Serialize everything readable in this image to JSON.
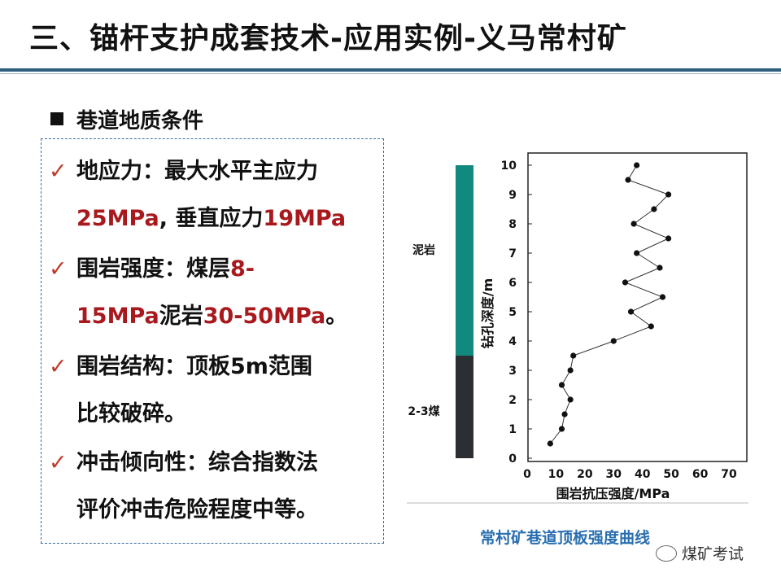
{
  "title": "三、锚杆支护成套技术-应用实例-义马常村矿",
  "section": "巷道地质条件",
  "items": [
    {
      "l1": [
        {
          "t": "地应力：最大水平主应力",
          "r": false
        }
      ],
      "l2": [
        {
          "t": "25MPa",
          "r": true
        },
        {
          "t": ", 垂直应力",
          "r": false
        },
        {
          "t": "19MPa",
          "r": true
        }
      ]
    },
    {
      "l1": [
        {
          "t": "围岩强度：煤层",
          "r": false
        },
        {
          "t": "8-",
          "r": true
        }
      ],
      "l2": [
        {
          "t": "15MPa",
          "r": true
        },
        {
          "t": "泥岩",
          "r": false
        },
        {
          "t": "30-50MPa",
          "r": true
        },
        {
          "t": "。",
          "r": false
        }
      ]
    },
    {
      "l1": [
        {
          "t": "围岩结构：顶板5m范围",
          "r": false
        }
      ],
      "l2": [
        {
          "t": "比较破碎。",
          "r": false
        }
      ]
    },
    {
      "l1": [
        {
          "t": "冲击倾向性：综合指数法",
          "r": false
        }
      ],
      "l2": [
        {
          "t": "评价冲击危险程度中等。",
          "r": false
        }
      ]
    }
  ],
  "check_mark": "✓",
  "caption": "常村矿巷道顶板强度曲线",
  "watermark": "煤矿考试",
  "chart_data": {
    "type": "line",
    "xlabel": "围岩抗压强度/MPa",
    "ylabel": "钻孔深度/m",
    "xlim": [
      0,
      70
    ],
    "ylim": [
      0,
      10
    ],
    "xticks": [
      0,
      10,
      20,
      30,
      40,
      50,
      60,
      70
    ],
    "yticks": [
      0,
      1,
      2,
      3,
      4,
      5,
      6,
      7,
      8,
      9,
      10
    ],
    "points": [
      [
        8,
        0.5
      ],
      [
        12,
        1.0
      ],
      [
        13,
        1.5
      ],
      [
        15,
        2.0
      ],
      [
        12,
        2.5
      ],
      [
        15,
        3.0
      ],
      [
        16,
        3.5
      ],
      [
        30,
        4.0
      ],
      [
        43,
        4.5
      ],
      [
        36,
        5.0
      ],
      [
        47,
        5.5
      ],
      [
        34,
        6.0
      ],
      [
        46,
        6.5
      ],
      [
        38,
        7.0
      ],
      [
        49,
        7.5
      ],
      [
        37,
        8.0
      ],
      [
        44,
        8.5
      ],
      [
        49,
        9.0
      ],
      [
        35,
        9.5
      ],
      [
        38,
        10.0
      ]
    ],
    "strata": [
      {
        "name": "泥岩",
        "from": 3.5,
        "to": 10,
        "color": "#11897f"
      },
      {
        "name": "2-3煤",
        "from": 0,
        "to": 3.5,
        "color": "#2b2f33"
      }
    ],
    "grid": false
  }
}
